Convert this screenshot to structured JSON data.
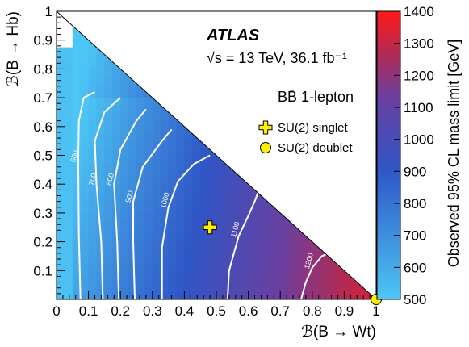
{
  "chart_data": {
    "type": "heatmap",
    "title": "ATLAS",
    "subtitle": "√s = 13 TeV, 36.1 fb⁻¹",
    "channel_label": "BB̄ 1-lepton",
    "xlabel": "ℬ(B → Wt)",
    "ylabel": "ℬ(B → Hb)",
    "zlabel": "Observed 95% CL mass limit [GeV]",
    "xlim": [
      0,
      1
    ],
    "ylim": [
      0,
      1
    ],
    "zlim": [
      500,
      1400
    ],
    "x_ticks": [
      "0",
      "0.1",
      "0.2",
      "0.3",
      "0.4",
      "0.5",
      "0.6",
      "0.7",
      "0.8",
      "0.9",
      "1"
    ],
    "y_ticks": [
      "0.1",
      "0.2",
      "0.3",
      "0.4",
      "0.5",
      "0.6",
      "0.7",
      "0.8",
      "0.9",
      "1"
    ],
    "z_ticks": [
      "500",
      "600",
      "700",
      "800",
      "900",
      "1000",
      "1100",
      "1200",
      "1300",
      "1400"
    ],
    "colors": {
      "low": "#4dc6f5",
      "mid": "#2f56c6",
      "mid2": "#6a3fa0",
      "high": "#b02a55",
      "top": "#ff1a1a",
      "contour": "#ffffff"
    },
    "contours": [
      {
        "label": "600",
        "points": [
          [
            0.075,
            0.0
          ],
          [
            0.07,
            0.22
          ],
          [
            0.068,
            0.48
          ],
          [
            0.07,
            0.62
          ],
          [
            0.085,
            0.7
          ],
          [
            0.12,
            0.72
          ]
        ]
      },
      {
        "label": "700",
        "points": [
          [
            0.145,
            0.0
          ],
          [
            0.14,
            0.2
          ],
          [
            0.125,
            0.4
          ],
          [
            0.12,
            0.55
          ],
          [
            0.15,
            0.65
          ],
          [
            0.2,
            0.7
          ]
        ]
      },
      {
        "label": "800",
        "points": [
          [
            0.195,
            0.0
          ],
          [
            0.19,
            0.2
          ],
          [
            0.18,
            0.4
          ],
          [
            0.2,
            0.52
          ],
          [
            0.25,
            0.62
          ],
          [
            0.28,
            0.66
          ]
        ]
      },
      {
        "label": "900",
        "points": [
          [
            0.245,
            0.0
          ],
          [
            0.24,
            0.2
          ],
          [
            0.24,
            0.34
          ],
          [
            0.27,
            0.46
          ],
          [
            0.33,
            0.55
          ],
          [
            0.36,
            0.59
          ]
        ]
      },
      {
        "label": "1000",
        "points": [
          [
            0.33,
            0.0
          ],
          [
            0.33,
            0.18
          ],
          [
            0.35,
            0.32
          ],
          [
            0.38,
            0.41
          ],
          [
            0.43,
            0.47
          ],
          [
            0.48,
            0.5
          ]
        ]
      },
      {
        "label": "1100",
        "points": [
          [
            0.535,
            0.0
          ],
          [
            0.54,
            0.1
          ],
          [
            0.57,
            0.22
          ],
          [
            0.6,
            0.29
          ],
          [
            0.62,
            0.34
          ],
          [
            0.63,
            0.37
          ]
        ]
      },
      {
        "label": "1200",
        "points": [
          [
            0.765,
            0.0
          ],
          [
            0.78,
            0.06
          ],
          [
            0.8,
            0.11
          ],
          [
            0.83,
            0.15
          ],
          [
            0.85,
            0.16
          ]
        ]
      }
    ],
    "markers": [
      {
        "name": "SU(2) singlet",
        "symbol": "cross",
        "x": 0.48,
        "y": 0.25,
        "color": "#ffee00"
      },
      {
        "name": "SU(2) doublet",
        "symbol": "circle",
        "x": 1.0,
        "y": 0.0,
        "color": "#ffee00"
      }
    ],
    "legend_position": "right-middle"
  }
}
